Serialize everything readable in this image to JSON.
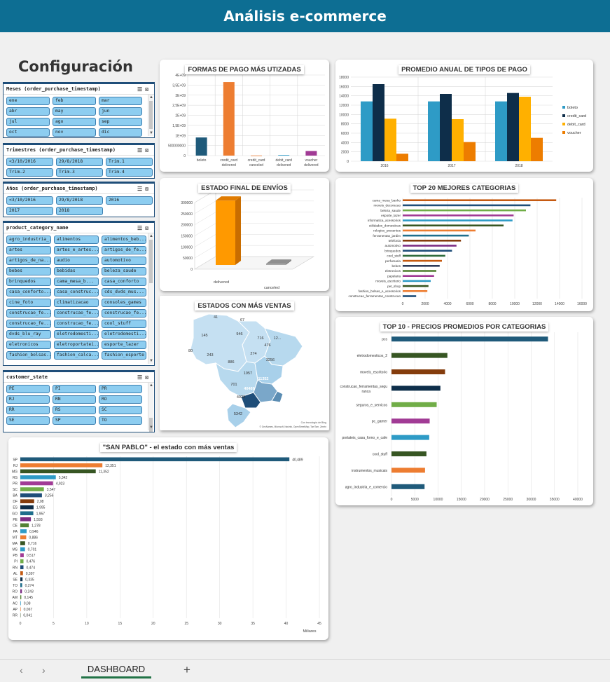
{
  "header": {
    "title": "Análisis  e-commerce"
  },
  "config": {
    "title": "Configuración"
  },
  "slicers": {
    "months": {
      "title": "Meses (order_purchase_timestamp)",
      "items": [
        "ene",
        "feb",
        "mar",
        "abr",
        "may",
        "jun",
        "jul",
        "ago",
        "sep",
        "oct",
        "nov",
        "dic"
      ]
    },
    "quarters": {
      "title": "Trimestres (order_purchase_timestamp)",
      "items": [
        "<3/10/2016",
        "29/8/2018",
        "Trim.1",
        "Trim.2",
        "Trim.3",
        "Trim.4"
      ]
    },
    "years": {
      "title": "Años (order_purchase_timestamp)",
      "items": [
        "<3/10/2016",
        "29/8/2018",
        "2016",
        "2017",
        "2018"
      ]
    },
    "category": {
      "title": "product_category_name",
      "items": [
        "agro_industria_...",
        "alimentos",
        "alimentos_beb...",
        "artes",
        "artes_e_artes...",
        "artigos_de_fe...",
        "artigos_de_na...",
        "audio",
        "automotivo",
        "bebes",
        "bebidas",
        "beleza_saude",
        "brinquedos",
        "cama_mesa_b...",
        "casa_conforto",
        "casa_conforto...",
        "casa_construc...",
        "cds_dvds_mus...",
        "cine_foto",
        "climatizacao",
        "consoles_games",
        "construcao_fe...",
        "construcao_fe...",
        "construcao_fe...",
        "construcao_fe...",
        "construcao_fe...",
        "cool_stuff",
        "dvds_blu_ray",
        "eletrodomesti...",
        "eletrodomesti...",
        "eletronicos",
        "eletroportatei...",
        "esporte_lazer",
        "fashion_bolsas...",
        "fashion_calca...",
        "fashion_esporte"
      ]
    },
    "state": {
      "title": "customer_state",
      "items": [
        "PE",
        "PI",
        "PR",
        "RJ",
        "RN",
        "RO",
        "RR",
        "RS",
        "SC",
        "SE",
        "SP",
        "TO"
      ]
    }
  },
  "sheet": {
    "tab": "DASHBOARD",
    "add": "+",
    "prev": "‹",
    "next": "›"
  },
  "chart_data": [
    {
      "id": "payments",
      "type": "bar",
      "title": "FORMAS DE PAGO MÁS UTIZADAS",
      "categories": [
        "boleto",
        "credit_card delivered",
        "credit_card canceled",
        "debit_card delivered",
        "voucher delivered"
      ],
      "values": [
        900000000,
        3650000000,
        5000000,
        30000000,
        230000000
      ],
      "ylim": [
        0,
        4000000000
      ],
      "yticks": [
        "0",
        "500000000",
        "1E+09",
        "1,5E+09",
        "2E+09",
        "2,5E+09",
        "3E+09",
        "3,5E+09",
        "4E+09"
      ],
      "colors": [
        "#1f5a7a",
        "#ed7d31",
        "#ed7d31",
        "#2e9bc6",
        "#a13b95"
      ]
    },
    {
      "id": "annual",
      "type": "bar",
      "title": "PROMEDIO ANUAL DE  TIPOS DE PAGO",
      "categories": [
        "2016",
        "2017",
        "2018"
      ],
      "series": [
        {
          "name": "boleto",
          "color": "#2e9bc6",
          "values": [
            12800,
            12800,
            12800
          ]
        },
        {
          "name": "credit_card",
          "color": "#0e2e4a",
          "values": [
            16500,
            14400,
            14600
          ]
        },
        {
          "name": "debit_card",
          "color": "#ffb000",
          "values": [
            9100,
            9000,
            13800
          ]
        },
        {
          "name": "voucher",
          "color": "#ed7d00",
          "values": [
            1600,
            4100,
            5000
          ]
        }
      ],
      "ylim": [
        0,
        18000
      ],
      "yticks": [
        "0",
        "2000",
        "4000",
        "6000",
        "8000",
        "10000",
        "12000",
        "14000",
        "16000",
        "18000"
      ]
    },
    {
      "id": "shipping",
      "type": "bar",
      "title": "ESTADO FINAL DE ENVÍOS",
      "categories": [
        "delivered",
        "canceled"
      ],
      "values": [
        290000,
        6000
      ],
      "ylim": [
        0,
        300000
      ],
      "yticks": [
        "0",
        "50000",
        "100000",
        "150000",
        "200000",
        "250000",
        "300000"
      ]
    },
    {
      "id": "map",
      "type": "map",
      "title": "ESTADOS CON MÁS VENTAS",
      "labels": [
        "41",
        "67",
        "145",
        "946",
        "716",
        "12...",
        "476",
        "80",
        "243",
        "274",
        "886",
        "3256",
        "1957",
        "11352",
        "701",
        "40489",
        "4923",
        "5342"
      ],
      "credit1": "Con tecnología de Bing",
      "credit2": "© GeoNames, Microsoft, Navinfo, OpenStreetMap, TomTom, Zenrin"
    },
    {
      "id": "top20",
      "type": "bar",
      "title": "TOP 20 MEJORES CATEGORIAS",
      "categories": [
        "cama_mesa_banho",
        "moveis_decoracao",
        "beleza_saude",
        "esporte_lazer",
        "informatica_acessorios",
        "utilidades_domesticas",
        "relogios_presentes",
        "ferramentas_jardim",
        "telefonia",
        "automotivo",
        "brinquedos",
        "cool_stuff",
        "perfumaria",
        "bebes",
        "eletronicos",
        "papelaria",
        "moveis_escritorio",
        "pet_shop",
        "fashion_bolsas_e_acessorios",
        "construcao_ferramentas_construcao"
      ],
      "values": [
        13700,
        11400,
        11000,
        9900,
        9800,
        9000,
        6500,
        5900,
        5200,
        4800,
        4400,
        3800,
        3500,
        3300,
        3000,
        2800,
        2500,
        2300,
        2200,
        1200
      ],
      "colors": [
        "#c55a11",
        "#1f4e79",
        "#70ad47",
        "#a13b95",
        "#2e9bc6",
        "#375623",
        "#ed7d31",
        "#1f6e8c",
        "#843c0c",
        "#7b2c83",
        "#1f4e79",
        "#2e6b3c",
        "#c55a11",
        "#2e3b5a",
        "#548235",
        "#a13b95",
        "#2e9bc6",
        "#375623",
        "#ed7d31",
        "#1f4e79"
      ],
      "ylim": [
        0,
        16000
      ],
      "xticks": [
        "0",
        "2000",
        "4000",
        "6000",
        "8000",
        "10000",
        "12000",
        "14000",
        "16000"
      ]
    },
    {
      "id": "top10",
      "type": "bar",
      "title": "TOP 10 - PRECIOS PROMEDIOS POR CATEGORIAS",
      "categories": [
        "pcs",
        "eletrodomesticos_2",
        "moveis_escritorio",
        "construcao_ferramentas_seguranca",
        "seguros_e_servicos",
        "pc_gamer",
        "portateis_casa_forno_e_cafe",
        "cool_stuff",
        "instrumentos_musicais",
        "agro_industria_e_comercio"
      ],
      "labels": [
        "pcs",
        "eletrodomesticos_2",
        "moveis_escritorio",
        "construcao_ferramentas_segu|ranca",
        "seguros_e_servicos",
        "pc_gamer",
        "portateis_casa_forno_e_cafe",
        "cool_stuff",
        "instrumentos_musicais",
        "agro_industria_e_comercio"
      ],
      "values": [
        33600,
        12000,
        11500,
        10500,
        9700,
        8200,
        8100,
        7500,
        7200,
        7100
      ],
      "colors": [
        "#1f5a7a",
        "#375623",
        "#843c0c",
        "#0e2e4a",
        "#70ad47",
        "#a13b95",
        "#2e9bc6",
        "#375623",
        "#ed7d31",
        "#1f5a7a"
      ],
      "ylim": [
        0,
        40000
      ],
      "xticks": [
        "0",
        "5000",
        "10000",
        "15000",
        "20000",
        "25000",
        "30000",
        "35000",
        "40000"
      ]
    },
    {
      "id": "saopaulo",
      "type": "bar",
      "title": "\"SAN PABLO\" - el estado con más ventas",
      "categories": [
        "SP",
        "RJ",
        "MG",
        "RS",
        "PR",
        "SC",
        "BA",
        "DF",
        "ES",
        "GO",
        "PE",
        "CE",
        "PA",
        "MT",
        "MA",
        "MS",
        "PB",
        "PI",
        "RN",
        "AL",
        "SE",
        "TO",
        "RO",
        "AM",
        "AC",
        "AP",
        "RR"
      ],
      "values": [
        40.489,
        12.351,
        11.352,
        5.342,
        4.923,
        3.547,
        3.256,
        2.08,
        1.995,
        1.957,
        1.593,
        1.278,
        0.946,
        0.886,
        0.716,
        0.701,
        0.517,
        0.476,
        0.474,
        0.397,
        0.335,
        0.274,
        0.243,
        0.145,
        0.08,
        0.067,
        0.041
      ],
      "value_labels": [
        "40,489",
        "12,351",
        "11,352",
        "5,342",
        "4,923",
        "3,547",
        "3,256",
        "2,08",
        "1,995",
        "1,957",
        "1,593",
        "1,278",
        "0,946",
        "0,886",
        "0,716",
        "0,701",
        "0,517",
        "0,476",
        "0,474",
        "0,397",
        "0,335",
        "0,274",
        "0,243",
        "0,145",
        "0,08",
        "0,067",
        "0,041"
      ],
      "colors": [
        "#1f5a7a",
        "#ed7d31",
        "#375623",
        "#2e9bc6",
        "#a13b95",
        "#70ad47",
        "#1f4e79",
        "#843c0c",
        "#0e2e4a",
        "#1f6e8c",
        "#7b2c83",
        "#548235",
        "#2e9bc6",
        "#ed7d31",
        "#375623",
        "#2e9bc6",
        "#a13b95",
        "#70ad47",
        "#1f4e79",
        "#c55a11",
        "#0e2e4a",
        "#1f6e8c",
        "#7b2c83",
        "#548235",
        "#2e9bc6",
        "#ed7d31",
        "#375623"
      ],
      "ylim": [
        0,
        45
      ],
      "xticks": [
        "0",
        "5",
        "10",
        "15",
        "20",
        "25",
        "30",
        "35",
        "40",
        "45"
      ],
      "xlabel": "Miliares"
    }
  ]
}
